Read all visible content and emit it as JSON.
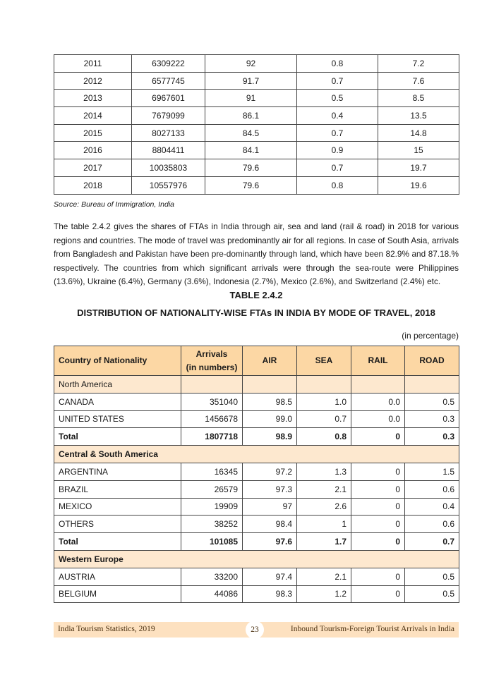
{
  "top_table": {
    "rows": [
      [
        "2011",
        "6309222",
        "92",
        "0.8",
        "7.2"
      ],
      [
        "2012",
        "6577745",
        "91.7",
        "0.7",
        "7.6"
      ],
      [
        "2013",
        "6967601",
        "91",
        "0.5",
        "8.5"
      ],
      [
        "2014",
        "7679099",
        "86.1",
        "0.4",
        "13.5"
      ],
      [
        "2015",
        "8027133",
        "84.5",
        "0.7",
        "14.8"
      ],
      [
        "2016",
        "8804411",
        "84.1",
        "0.9",
        "15"
      ],
      [
        "2017",
        "10035803",
        "79.6",
        "0.7",
        "19.7"
      ],
      [
        "2018",
        "10557976",
        "79.6",
        "0.8",
        "19.6"
      ]
    ]
  },
  "source": "Source: Bureau of Immigration, India",
  "paragraph": "The table 2.4.2 gives the shares of FTAs in India through air, sea and land (rail & road) in 2018 for various regions and countries. The mode of travel was predominantly air for all regions. In case of South Asia, arrivals from Bangladesh and Pakistan have been pre-dominantly through land, which have been 82.9% and 87.18.% respectively. The countries from which significant arrivals were through the sea-route were Philippines (13.6%), Ukraine (6.4%), Germany (3.6%), Indonesia (2.7%), Mexico (2.6%), and Switzerland (2.4%) etc.",
  "table": {
    "title": "TABLE 2.4.2",
    "subtitle": "DISTRIBUTION OF NATIONALITY-WISE FTAs IN INDIA BY MODE OF TRAVEL, 2018",
    "unit_note": "(in percentage)",
    "header": [
      "Country of Nationality",
      [
        "Arrivals",
        "(in numbers)"
      ],
      "AIR",
      "SEA",
      "RAIL",
      "ROAD"
    ],
    "rows": [
      {
        "region": "North America",
        "bold": false
      },
      {
        "cells": [
          "CANADA",
          "351040",
          "98.5",
          "1.0",
          "0.0",
          "0.5"
        ]
      },
      {
        "cells": [
          "UNITED STATES",
          "1456678",
          "99.0",
          "0.7",
          "0.0",
          "0.3"
        ]
      },
      {
        "cells": [
          "Total",
          "1807718",
          "98.9",
          "0.8",
          "0",
          "0.3"
        ],
        "bold": true
      },
      {
        "region": "Central & South America",
        "bold": true
      },
      {
        "cells": [
          "ARGENTINA",
          "16345",
          "97.2",
          "1.3",
          "0",
          "1.5"
        ]
      },
      {
        "cells": [
          "BRAZIL",
          "26579",
          "97.3",
          "2.1",
          "0",
          "0.6"
        ]
      },
      {
        "cells": [
          "MEXICO",
          "19909",
          "97",
          "2.6",
          "0",
          "0.4"
        ]
      },
      {
        "cells": [
          "OTHERS",
          "38252",
          "98.4",
          "1",
          "0",
          "0.6"
        ]
      },
      {
        "cells": [
          "Total",
          "101085",
          "97.6",
          "1.7",
          "0",
          "0.7"
        ],
        "bold": true
      },
      {
        "region": "Western Europe",
        "bold": true
      },
      {
        "cells": [
          "AUSTRIA",
          "33200",
          "97.4",
          "2.1",
          "0",
          "0.5"
        ]
      },
      {
        "cells": [
          "BELGIUM",
          "44086",
          "98.3",
          "1.2",
          "0",
          "0.5"
        ]
      }
    ]
  },
  "footer": {
    "left": "India Tourism Statistics, 2019",
    "page": "23",
    "right": "Inbound Tourism-Foreign Tourist Arrivals in India"
  }
}
